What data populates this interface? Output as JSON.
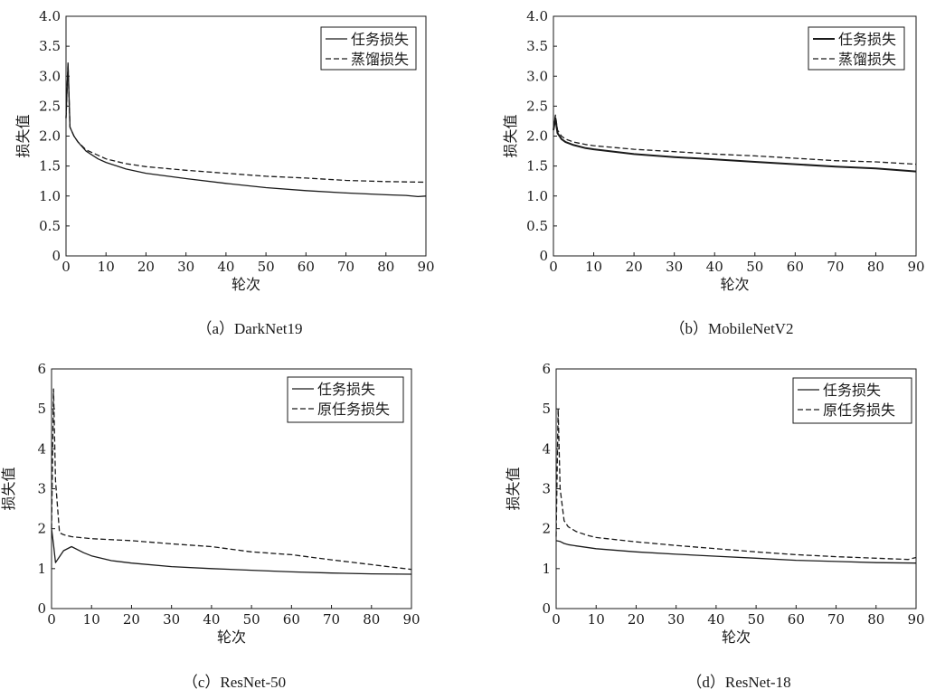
{
  "chart_data": [
    {
      "type": "line",
      "caption": "（a）DarkNet19",
      "xlabel": "轮次",
      "ylabel": "损失值",
      "xlim": [
        0,
        90
      ],
      "ylim": [
        0,
        4
      ],
      "x_ticks": [
        0,
        10,
        20,
        30,
        40,
        50,
        60,
        70,
        80,
        90
      ],
      "y_ticks": [
        0,
        0.5,
        1.0,
        1.5,
        2.0,
        2.5,
        3.0,
        3.5,
        4.0
      ],
      "y_tick_labels": [
        "0",
        "0.5",
        "1.0",
        "1.5",
        "2.0",
        "2.5",
        "3.0",
        "3.5",
        "4.0"
      ],
      "legend_position": "top-right",
      "series": [
        {
          "name": "任务损失",
          "style": "solid",
          "thick": false,
          "x": [
            0,
            0.5,
            1,
            2,
            3,
            5,
            8,
            10,
            15,
            20,
            30,
            40,
            50,
            60,
            70,
            80,
            85,
            88,
            90
          ],
          "y": [
            2.3,
            3.22,
            2.15,
            2.0,
            1.9,
            1.75,
            1.62,
            1.56,
            1.45,
            1.38,
            1.29,
            1.21,
            1.14,
            1.09,
            1.05,
            1.02,
            1.01,
            0.99,
            1.0
          ]
        },
        {
          "name": "蒸馏损失",
          "style": "dashed",
          "thick": false,
          "x": [
            0,
            0.5,
            1,
            2,
            3,
            5,
            8,
            10,
            15,
            20,
            30,
            40,
            50,
            60,
            70,
            80,
            90
          ],
          "y": [
            2.3,
            3.2,
            2.15,
            2.0,
            1.9,
            1.77,
            1.68,
            1.62,
            1.54,
            1.49,
            1.43,
            1.38,
            1.33,
            1.3,
            1.26,
            1.24,
            1.23
          ]
        }
      ]
    },
    {
      "type": "line",
      "caption": "（b）MobileNetV2",
      "xlabel": "轮次",
      "ylabel": "损失值",
      "xlim": [
        0,
        90
      ],
      "ylim": [
        0,
        4
      ],
      "x_ticks": [
        0,
        10,
        20,
        30,
        40,
        50,
        60,
        70,
        80,
        90
      ],
      "y_ticks": [
        0,
        0.5,
        1.0,
        1.5,
        2.0,
        2.5,
        3.0,
        3.5,
        4.0
      ],
      "y_tick_labels": [
        "0",
        "0.5",
        "1.0",
        "1.5",
        "2.0",
        "2.5",
        "3.0",
        "3.5",
        "4.0"
      ],
      "legend_position": "top-right",
      "series": [
        {
          "name": "任务损失",
          "style": "solid",
          "thick": true,
          "x": [
            0,
            0.5,
            1,
            2,
            3,
            5,
            8,
            10,
            20,
            30,
            40,
            50,
            60,
            70,
            80,
            90
          ],
          "y": [
            2.1,
            2.3,
            2.05,
            1.95,
            1.9,
            1.85,
            1.8,
            1.78,
            1.7,
            1.65,
            1.61,
            1.57,
            1.53,
            1.49,
            1.46,
            1.41
          ]
        },
        {
          "name": "蒸馏损失",
          "style": "dashed",
          "thick": false,
          "x": [
            0,
            0.5,
            1,
            2,
            3,
            5,
            8,
            10,
            20,
            30,
            40,
            50,
            60,
            70,
            80,
            90
          ],
          "y": [
            2.15,
            2.35,
            2.1,
            2.0,
            1.95,
            1.9,
            1.86,
            1.84,
            1.78,
            1.74,
            1.7,
            1.67,
            1.63,
            1.59,
            1.57,
            1.53
          ]
        }
      ]
    },
    {
      "type": "line",
      "caption": "（c）ResNet-50",
      "xlabel": "轮次",
      "ylabel": "损失值",
      "xlim": [
        0,
        90
      ],
      "ylim": [
        0,
        6
      ],
      "x_ticks": [
        0,
        10,
        20,
        30,
        40,
        50,
        60,
        70,
        80,
        90
      ],
      "y_ticks": [
        0,
        1,
        2,
        3,
        4,
        5,
        6
      ],
      "y_tick_labels": [
        "0",
        "1",
        "2",
        "3",
        "4",
        "5",
        "6"
      ],
      "legend_position": "top-right",
      "series": [
        {
          "name": "任务损失",
          "style": "solid",
          "thick": false,
          "x": [
            0,
            0.5,
            1,
            2,
            3,
            5,
            8,
            10,
            15,
            20,
            30,
            40,
            50,
            60,
            70,
            80,
            90
          ],
          "y": [
            2.0,
            1.6,
            1.15,
            1.3,
            1.45,
            1.55,
            1.4,
            1.32,
            1.2,
            1.14,
            1.05,
            1.0,
            0.96,
            0.92,
            0.89,
            0.87,
            0.86
          ]
        },
        {
          "name": "原任务损失",
          "style": "dashed",
          "thick": false,
          "x": [
            0,
            0.5,
            1,
            2,
            3,
            5,
            10,
            20,
            30,
            40,
            50,
            60,
            70,
            80,
            90
          ],
          "y": [
            2.0,
            5.5,
            3.2,
            1.9,
            1.85,
            1.8,
            1.75,
            1.7,
            1.62,
            1.55,
            1.42,
            1.35,
            1.22,
            1.1,
            0.98
          ]
        }
      ]
    },
    {
      "type": "line",
      "caption": "（d）ResNet-18",
      "xlabel": "轮次",
      "ylabel": "损失值",
      "xlim": [
        0,
        90
      ],
      "ylim": [
        0,
        6
      ],
      "x_ticks": [
        0,
        10,
        20,
        30,
        40,
        50,
        60,
        70,
        80,
        90
      ],
      "y_ticks": [
        0,
        1,
        2,
        3,
        4,
        5,
        6
      ],
      "y_tick_labels": [
        "0",
        "1",
        "2",
        "3",
        "4",
        "5",
        "6"
      ],
      "legend_position": "top-right",
      "series": [
        {
          "name": "任务损失",
          "style": "solid",
          "thick": false,
          "x": [
            0,
            1,
            2,
            3,
            5,
            10,
            20,
            30,
            40,
            50,
            60,
            70,
            80,
            90
          ],
          "y": [
            1.7,
            1.68,
            1.63,
            1.6,
            1.57,
            1.5,
            1.42,
            1.36,
            1.31,
            1.26,
            1.21,
            1.18,
            1.15,
            1.14
          ]
        },
        {
          "name": "原任务损失",
          "style": "dashed",
          "thick": false,
          "x": [
            0,
            0.5,
            1,
            2,
            3,
            5,
            8,
            10,
            20,
            30,
            40,
            50,
            60,
            70,
            80,
            88,
            90
          ],
          "y": [
            1.8,
            5.0,
            3.0,
            2.2,
            2.05,
            1.93,
            1.83,
            1.78,
            1.67,
            1.58,
            1.5,
            1.42,
            1.35,
            1.3,
            1.26,
            1.23,
            1.28
          ]
        }
      ]
    }
  ]
}
